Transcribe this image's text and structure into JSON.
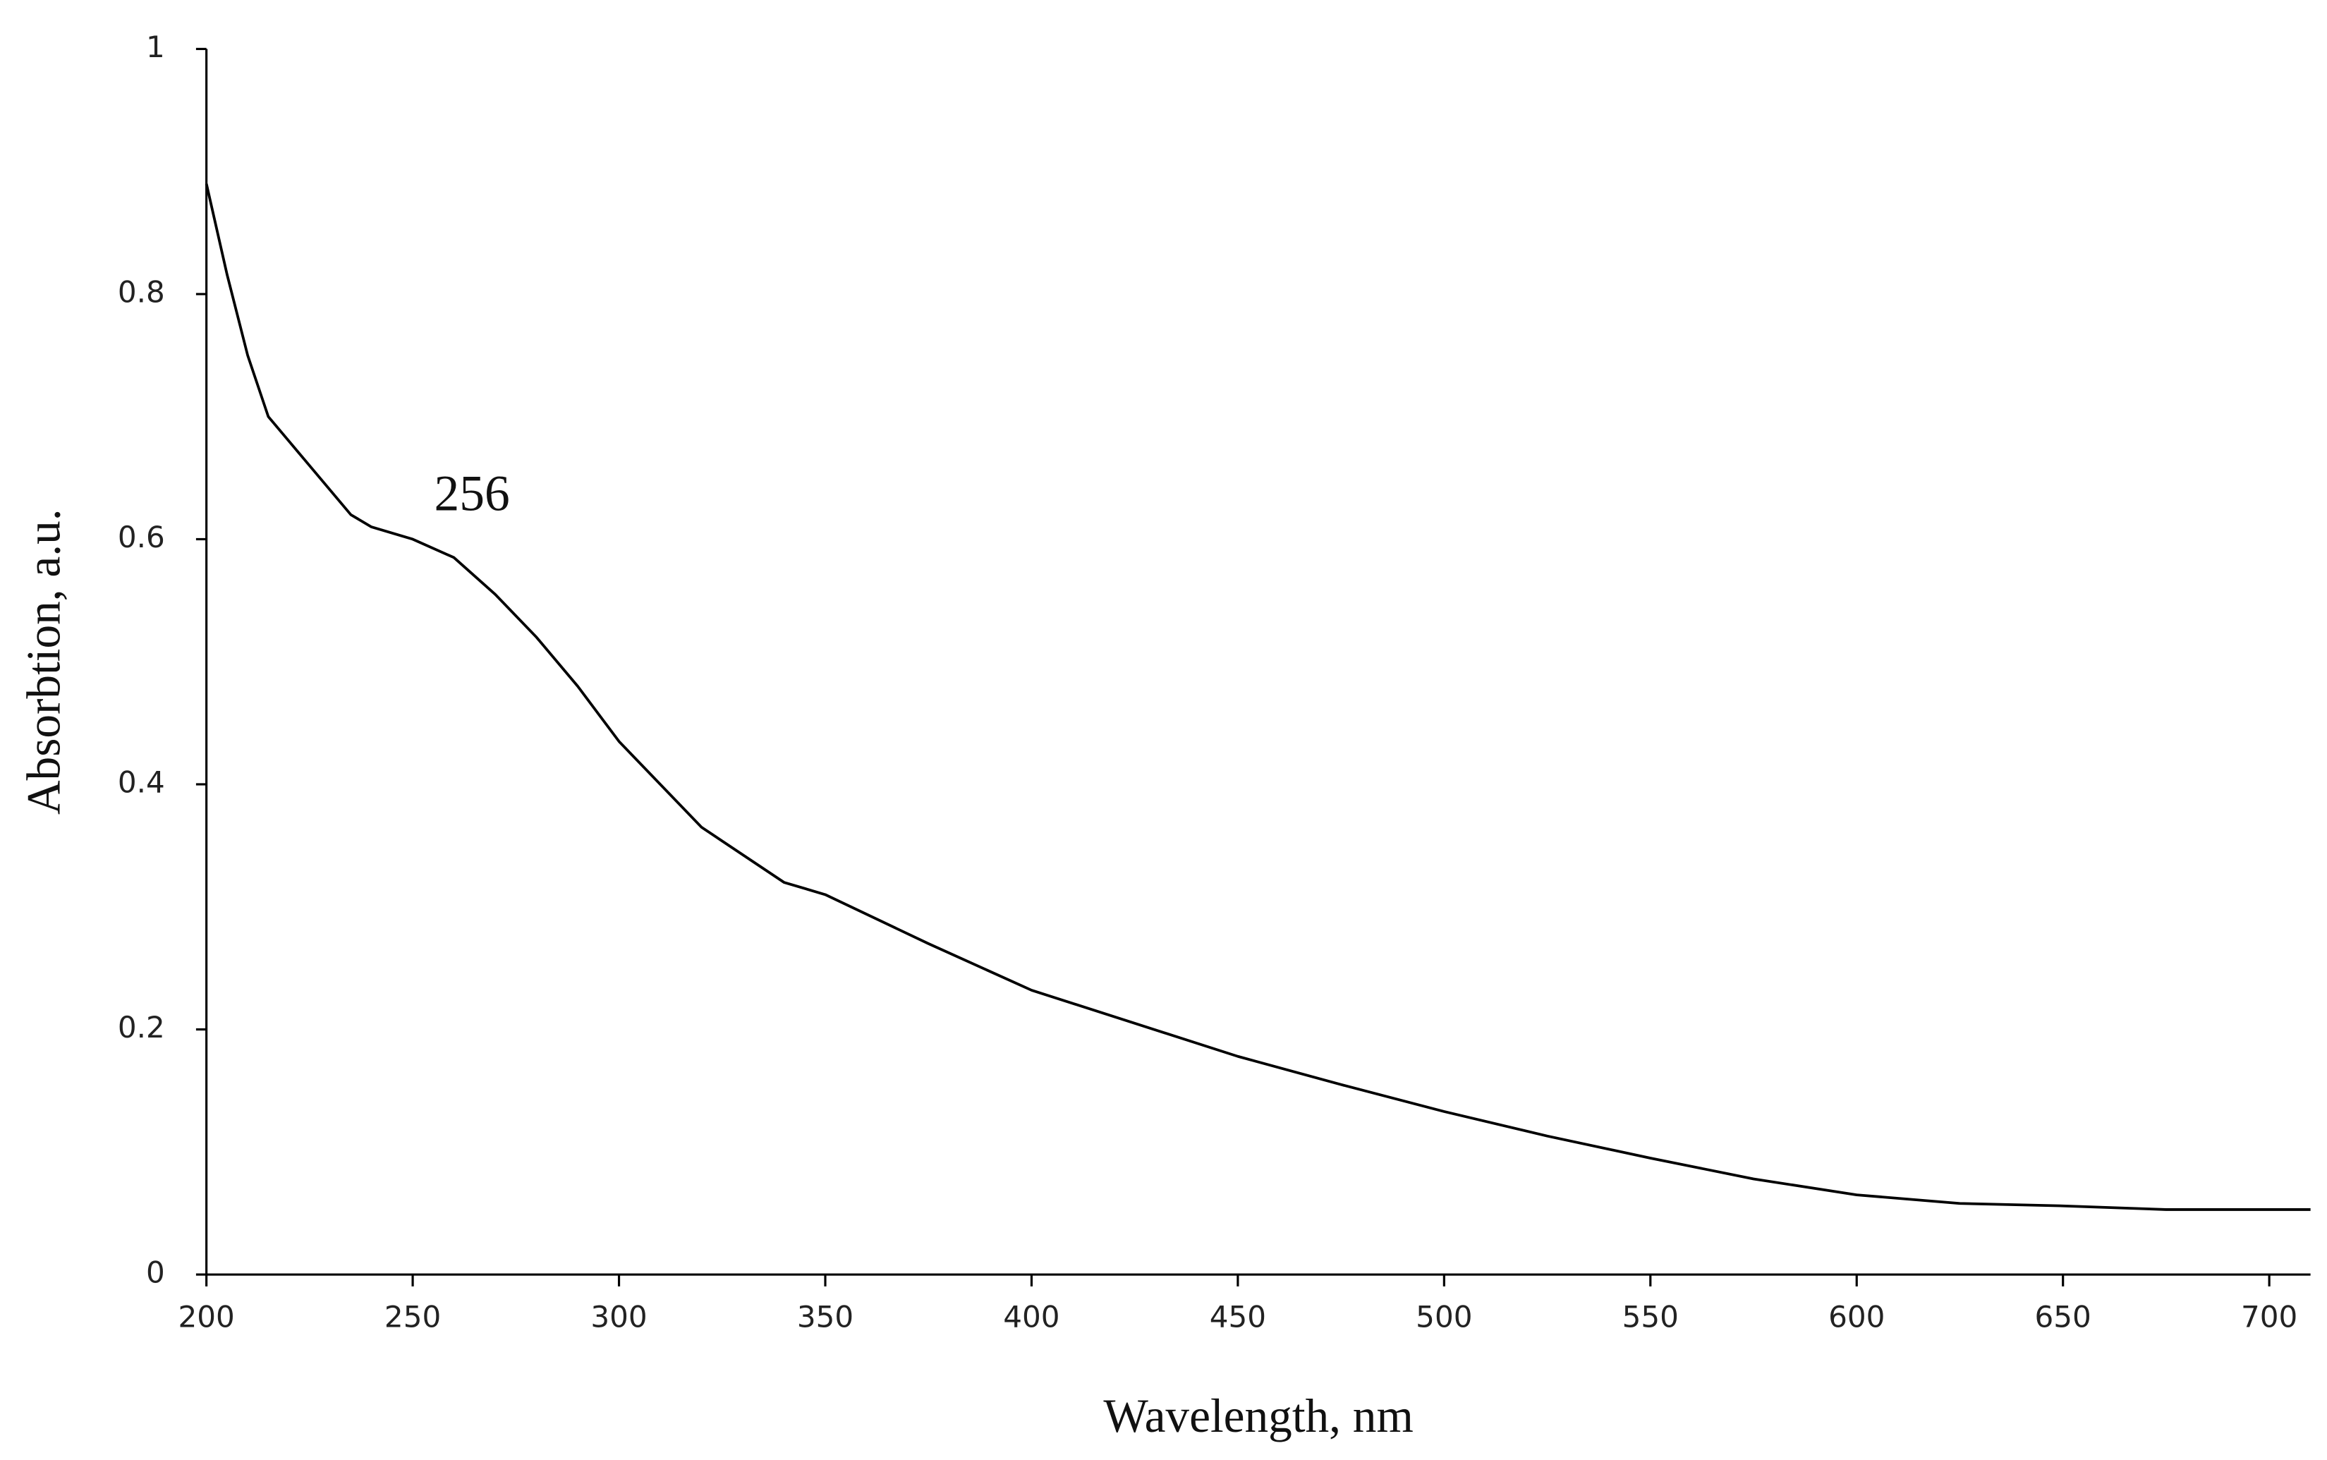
{
  "chart_data": {
    "type": "line",
    "x_label": "Wavelength, nm",
    "y_label": "Absorbtion, a.u.",
    "annotations": [
      {
        "text": "256"
      }
    ],
    "x": [
      200,
      205,
      210,
      215,
      220,
      225,
      230,
      235,
      240,
      250,
      260,
      270,
      280,
      290,
      300,
      320,
      340,
      350,
      375,
      400,
      425,
      450,
      475,
      500,
      525,
      550,
      575,
      600,
      625,
      650,
      675,
      710
    ],
    "series": [
      {
        "name": "Absorption",
        "color": "#000000",
        "values": [
          0.89,
          0.816,
          0.75,
          0.7,
          0.68,
          0.66,
          0.64,
          0.62,
          0.61,
          0.6,
          0.585,
          0.555,
          0.52,
          0.48,
          0.435,
          0.365,
          0.32,
          0.31,
          0.27,
          0.232,
          0.205,
          0.178,
          0.155,
          0.133,
          0.113,
          0.095,
          0.078,
          0.065,
          0.058,
          0.056,
          0.053,
          0.053
        ]
      }
    ],
    "xlim": [
      200,
      710
    ],
    "ylim": [
      0,
      1
    ],
    "xticks": [
      200,
      250,
      300,
      350,
      400,
      450,
      500,
      550,
      600,
      650,
      700
    ],
    "yticks": [
      0,
      0.2,
      0.4,
      0.6,
      0.8,
      1
    ],
    "grid": false
  }
}
